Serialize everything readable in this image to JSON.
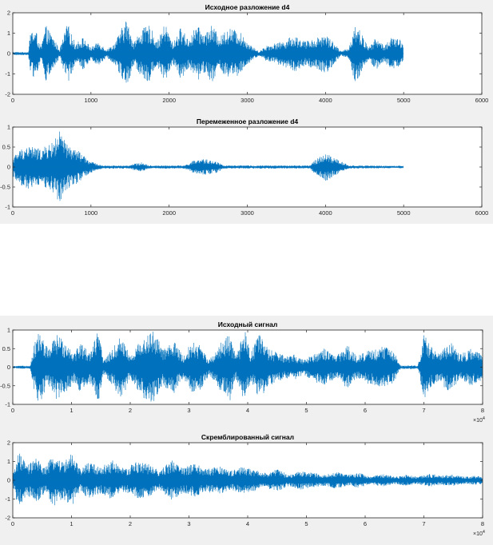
{
  "chart_data": [
    {
      "type": "line",
      "title": "Исходное разложение d4",
      "xlim": [
        0,
        6000
      ],
      "ylim": [
        -2,
        2
      ],
      "x_ticks": [
        "0",
        "1000",
        "2000",
        "3000",
        "4000",
        "5000",
        "6000"
      ],
      "y_ticks": [
        "-2",
        "-1",
        "0",
        "1",
        "2"
      ],
      "series_color": "#0072BD",
      "grid": false,
      "n_samples": 5000,
      "envelope": [
        {
          "x": 0,
          "amp": 0.08
        },
        {
          "x": 200,
          "amp": 0.08
        },
        {
          "x": 230,
          "amp": 1.2
        },
        {
          "x": 300,
          "amp": 1.1
        },
        {
          "x": 360,
          "amp": 0.3
        },
        {
          "x": 420,
          "amp": 1.4
        },
        {
          "x": 520,
          "amp": 0.8
        },
        {
          "x": 600,
          "amp": 0.2
        },
        {
          "x": 700,
          "amp": 1.5
        },
        {
          "x": 800,
          "amp": 0.5
        },
        {
          "x": 900,
          "amp": 0.8
        },
        {
          "x": 1000,
          "amp": 0.3
        },
        {
          "x": 1100,
          "amp": 0.6
        },
        {
          "x": 1200,
          "amp": 0.2
        },
        {
          "x": 1300,
          "amp": 0.5
        },
        {
          "x": 1400,
          "amp": 1.3
        },
        {
          "x": 1450,
          "amp": 1.7
        },
        {
          "x": 1550,
          "amp": 0.6
        },
        {
          "x": 1650,
          "amp": 1.2
        },
        {
          "x": 1750,
          "amp": 1.4
        },
        {
          "x": 1850,
          "amp": 0.6
        },
        {
          "x": 1950,
          "amp": 1.5
        },
        {
          "x": 2050,
          "amp": 0.5
        },
        {
          "x": 2150,
          "amp": 1.3
        },
        {
          "x": 2250,
          "amp": 0.7
        },
        {
          "x": 2350,
          "amp": 1.4
        },
        {
          "x": 2450,
          "amp": 1.0
        },
        {
          "x": 2550,
          "amp": 1.4
        },
        {
          "x": 2650,
          "amp": 0.8
        },
        {
          "x": 2750,
          "amp": 1.3
        },
        {
          "x": 2900,
          "amp": 1.1
        },
        {
          "x": 3050,
          "amp": 0.4
        },
        {
          "x": 3150,
          "amp": 0.1
        },
        {
          "x": 3250,
          "amp": 0.4
        },
        {
          "x": 3350,
          "amp": 0.5
        },
        {
          "x": 3450,
          "amp": 0.6
        },
        {
          "x": 3600,
          "amp": 0.9
        },
        {
          "x": 3750,
          "amp": 0.6
        },
        {
          "x": 3900,
          "amp": 0.8
        },
        {
          "x": 4000,
          "amp": 1.0
        },
        {
          "x": 4100,
          "amp": 0.6
        },
        {
          "x": 4200,
          "amp": 0.1
        },
        {
          "x": 4300,
          "amp": 0.3
        },
        {
          "x": 4380,
          "amp": 1.5
        },
        {
          "x": 4450,
          "amp": 1.1
        },
        {
          "x": 4550,
          "amp": 0.3
        },
        {
          "x": 4650,
          "amp": 0.8
        },
        {
          "x": 4750,
          "amp": 0.4
        },
        {
          "x": 4850,
          "amp": 0.8
        },
        {
          "x": 4950,
          "amp": 0.7
        },
        {
          "x": 5000,
          "amp": 0.5
        }
      ]
    },
    {
      "type": "line",
      "title": "Перемеженное разложение d4",
      "xlim": [
        0,
        6000
      ],
      "ylim": [
        -1,
        1
      ],
      "x_ticks": [
        "0",
        "1000",
        "2000",
        "3000",
        "4000",
        "5000",
        "6000"
      ],
      "y_ticks": [
        "-1",
        "-0.5",
        "0",
        "0.5",
        "1"
      ],
      "series_color": "#0072BD",
      "grid": false,
      "n_samples": 5000,
      "envelope": [
        {
          "x": 0,
          "amp": 0.25
        },
        {
          "x": 100,
          "amp": 0.45
        },
        {
          "x": 200,
          "amp": 0.55
        },
        {
          "x": 350,
          "amp": 0.45
        },
        {
          "x": 500,
          "amp": 0.6
        },
        {
          "x": 600,
          "amp": 0.9
        },
        {
          "x": 700,
          "amp": 0.55
        },
        {
          "x": 850,
          "amp": 0.4
        },
        {
          "x": 950,
          "amp": 0.2
        },
        {
          "x": 1050,
          "amp": 0.1
        },
        {
          "x": 1150,
          "amp": 0.04
        },
        {
          "x": 1500,
          "amp": 0.04
        },
        {
          "x": 1550,
          "amp": 0.08
        },
        {
          "x": 1650,
          "amp": 0.12
        },
        {
          "x": 1750,
          "amp": 0.04
        },
        {
          "x": 2200,
          "amp": 0.04
        },
        {
          "x": 2300,
          "amp": 0.15
        },
        {
          "x": 2450,
          "amp": 0.2
        },
        {
          "x": 2600,
          "amp": 0.15
        },
        {
          "x": 2700,
          "amp": 0.04
        },
        {
          "x": 3800,
          "amp": 0.04
        },
        {
          "x": 3850,
          "amp": 0.15
        },
        {
          "x": 4000,
          "amp": 0.35
        },
        {
          "x": 4150,
          "amp": 0.2
        },
        {
          "x": 4300,
          "amp": 0.04
        },
        {
          "x": 5000,
          "amp": 0.03
        }
      ]
    },
    {
      "type": "line",
      "title": "Исходный сигнал",
      "xlim": [
        0,
        8
      ],
      "ylim": [
        -1,
        1
      ],
      "x_ticks": [
        "0",
        "1",
        "2",
        "3",
        "4",
        "5",
        "6",
        "7",
        "8"
      ],
      "y_ticks": [
        "-1",
        "-0.5",
        "0",
        "0.5",
        "1"
      ],
      "x_exponent": "×10",
      "x_exponent_power": "4",
      "series_color": "#0072BD",
      "grid": false,
      "n_samples": 8000,
      "envelope": [
        {
          "x": 0,
          "amp": 0.03
        },
        {
          "x": 0.3,
          "amp": 0.05
        },
        {
          "x": 0.35,
          "amp": 0.55
        },
        {
          "x": 0.45,
          "amp": 1.0
        },
        {
          "x": 0.6,
          "amp": 0.5
        },
        {
          "x": 0.75,
          "amp": 0.9
        },
        {
          "x": 0.9,
          "amp": 0.7
        },
        {
          "x": 1.05,
          "amp": 0.4
        },
        {
          "x": 1.15,
          "amp": 0.7
        },
        {
          "x": 1.3,
          "amp": 0.4
        },
        {
          "x": 1.45,
          "amp": 1.0
        },
        {
          "x": 1.55,
          "amp": 0.2
        },
        {
          "x": 1.7,
          "amp": 0.5
        },
        {
          "x": 1.85,
          "amp": 0.9
        },
        {
          "x": 2.0,
          "amp": 0.3
        },
        {
          "x": 2.2,
          "amp": 0.8
        },
        {
          "x": 2.4,
          "amp": 1.0
        },
        {
          "x": 2.55,
          "amp": 0.5
        },
        {
          "x": 2.75,
          "amp": 0.7
        },
        {
          "x": 2.9,
          "amp": 0.3
        },
        {
          "x": 3.05,
          "amp": 0.7
        },
        {
          "x": 3.2,
          "amp": 0.6
        },
        {
          "x": 3.35,
          "amp": 0.2
        },
        {
          "x": 3.55,
          "amp": 0.7
        },
        {
          "x": 3.7,
          "amp": 0.9
        },
        {
          "x": 3.8,
          "amp": 0.3
        },
        {
          "x": 3.95,
          "amp": 1.0
        },
        {
          "x": 4.05,
          "amp": 0.4
        },
        {
          "x": 4.2,
          "amp": 0.9
        },
        {
          "x": 4.35,
          "amp": 0.5
        },
        {
          "x": 4.5,
          "amp": 0.4
        },
        {
          "x": 4.65,
          "amp": 0.3
        },
        {
          "x": 4.8,
          "amp": 0.35
        },
        {
          "x": 4.95,
          "amp": 0.2
        },
        {
          "x": 5.15,
          "amp": 0.4
        },
        {
          "x": 5.3,
          "amp": 0.5
        },
        {
          "x": 5.5,
          "amp": 0.3
        },
        {
          "x": 5.7,
          "amp": 0.6
        },
        {
          "x": 5.85,
          "amp": 0.3
        },
        {
          "x": 6.05,
          "amp": 0.45
        },
        {
          "x": 6.2,
          "amp": 0.5
        },
        {
          "x": 6.35,
          "amp": 0.6
        },
        {
          "x": 6.5,
          "amp": 0.4
        },
        {
          "x": 6.6,
          "amp": 0.05
        },
        {
          "x": 6.9,
          "amp": 0.05
        },
        {
          "x": 7.0,
          "amp": 0.9
        },
        {
          "x": 7.1,
          "amp": 0.6
        },
        {
          "x": 7.25,
          "amp": 0.4
        },
        {
          "x": 7.45,
          "amp": 0.7
        },
        {
          "x": 7.6,
          "amp": 0.35
        },
        {
          "x": 7.8,
          "amp": 0.5
        },
        {
          "x": 7.95,
          "amp": 0.4
        },
        {
          "x": 8.0,
          "amp": 0.3
        }
      ]
    },
    {
      "type": "line",
      "title": "Скремблированный сигнал",
      "xlim": [
        0,
        8
      ],
      "ylim": [
        -2,
        2
      ],
      "x_ticks": [
        "0",
        "1",
        "2",
        "3",
        "4",
        "5",
        "6",
        "7",
        "8"
      ],
      "y_ticks": [
        "-2",
        "-1",
        "0",
        "1",
        "2"
      ],
      "x_exponent": "×10",
      "x_exponent_power": "4",
      "series_color": "#0072BD",
      "grid": false,
      "n_samples": 8000,
      "envelope": [
        {
          "x": 0,
          "amp": 0.3
        },
        {
          "x": 0.1,
          "amp": 1.5
        },
        {
          "x": 0.25,
          "amp": 0.8
        },
        {
          "x": 0.4,
          "amp": 1.2
        },
        {
          "x": 0.55,
          "amp": 0.7
        },
        {
          "x": 0.7,
          "amp": 1.4
        },
        {
          "x": 0.85,
          "amp": 1.0
        },
        {
          "x": 1.0,
          "amp": 1.4
        },
        {
          "x": 1.15,
          "amp": 0.6
        },
        {
          "x": 1.3,
          "amp": 1.0
        },
        {
          "x": 1.5,
          "amp": 0.7
        },
        {
          "x": 1.7,
          "amp": 1.1
        },
        {
          "x": 1.9,
          "amp": 0.6
        },
        {
          "x": 2.1,
          "amp": 1.0
        },
        {
          "x": 2.3,
          "amp": 0.9
        },
        {
          "x": 2.5,
          "amp": 0.5
        },
        {
          "x": 2.7,
          "amp": 1.1
        },
        {
          "x": 2.9,
          "amp": 0.7
        },
        {
          "x": 3.1,
          "amp": 0.9
        },
        {
          "x": 3.3,
          "amp": 0.6
        },
        {
          "x": 3.5,
          "amp": 0.8
        },
        {
          "x": 3.7,
          "amp": 0.5
        },
        {
          "x": 3.9,
          "amp": 0.7
        },
        {
          "x": 4.1,
          "amp": 0.6
        },
        {
          "x": 4.3,
          "amp": 0.4
        },
        {
          "x": 4.5,
          "amp": 0.6
        },
        {
          "x": 4.7,
          "amp": 0.3
        },
        {
          "x": 4.9,
          "amp": 0.5
        },
        {
          "x": 5.1,
          "amp": 0.4
        },
        {
          "x": 5.3,
          "amp": 0.3
        },
        {
          "x": 5.5,
          "amp": 0.45
        },
        {
          "x": 5.7,
          "amp": 0.3
        },
        {
          "x": 5.9,
          "amp": 0.4
        },
        {
          "x": 6.1,
          "amp": 0.2
        },
        {
          "x": 6.3,
          "amp": 0.35
        },
        {
          "x": 6.5,
          "amp": 0.2
        },
        {
          "x": 6.7,
          "amp": 0.3
        },
        {
          "x": 6.9,
          "amp": 0.2
        },
        {
          "x": 7.1,
          "amp": 0.35
        },
        {
          "x": 7.3,
          "amp": 0.25
        },
        {
          "x": 7.5,
          "amp": 0.3
        },
        {
          "x": 7.7,
          "amp": 0.2
        },
        {
          "x": 7.9,
          "amp": 0.25
        },
        {
          "x": 8.0,
          "amp": 0.2
        }
      ]
    }
  ]
}
